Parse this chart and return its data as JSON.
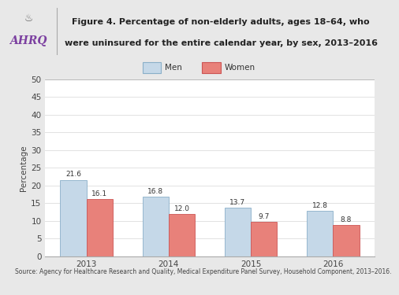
{
  "title_line1": "Figure 4. Percentage of non-elderly adults, ages 18–64, who",
  "title_line2": "were uninsured for the entire calendar year, by sex, 2013–2016",
  "source": "Source: Agency for Healthcare Research and Quality, Medical Expenditure Panel Survey, Household Component, 2013–2016.",
  "years": [
    "2013",
    "2014",
    "2015",
    "2016"
  ],
  "men_values": [
    21.6,
    16.8,
    13.7,
    12.8
  ],
  "women_values": [
    16.1,
    12.0,
    9.7,
    8.8
  ],
  "men_color": "#c5d8e8",
  "women_color": "#e8817a",
  "men_edge_color": "#8aafc8",
  "women_edge_color": "#cc5555",
  "ylabel": "Percentage",
  "ylim": [
    0,
    50
  ],
  "yticks": [
    0,
    5,
    10,
    15,
    20,
    25,
    30,
    35,
    40,
    45,
    50
  ],
  "legend_men_label": "Men",
  "legend_women_label": "Women",
  "header_bg_color": "#c8c8c8",
  "chart_bg_color": "#e8e8e8",
  "plot_bg_color": "#ffffff",
  "bar_width": 0.32,
  "value_fontsize": 6.5,
  "tick_fontsize": 7.5,
  "ylabel_fontsize": 7.5,
  "source_fontsize": 5.5,
  "legend_fontsize": 7.5,
  "title_fontsize": 8.0,
  "ahrq_color": "#7b3fa0"
}
